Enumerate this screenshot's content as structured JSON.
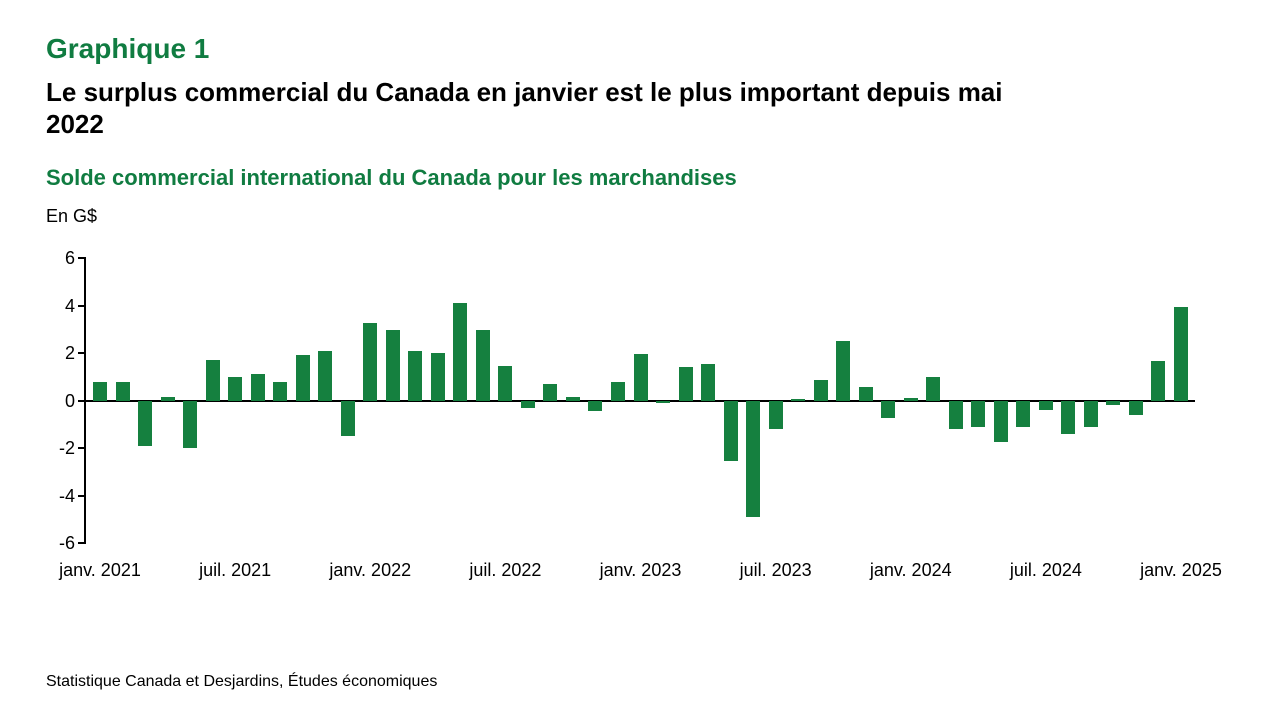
{
  "header": {
    "chart_number": "Graphique 1",
    "title": "Le surplus commercial du Canada en janvier est le plus important depuis mai\n2022",
    "subtitle": "Solde commercial international du Canada pour les marchandises",
    "unit_label": "En G$"
  },
  "source_note": "Statistique Canada et Desjardins, Études économiques",
  "colors": {
    "heading_green": "#107C41",
    "bar_green": "#15803F",
    "axis_black": "#000000"
  },
  "chart_data": {
    "type": "bar",
    "title": "Solde commercial international du Canada pour les marchandises",
    "xlabel": "",
    "ylabel": "En G$",
    "ylim": [
      -6,
      6
    ],
    "yticks": [
      6,
      4,
      2,
      0,
      -2,
      -4,
      -6
    ],
    "grid": false,
    "legend": "none",
    "xtick_labels": [
      "janv. 2021",
      "juil. 2021",
      "janv. 2022",
      "juil. 2022",
      "janv. 2023",
      "juil. 2023",
      "janv. 2024",
      "juil. 2024",
      "janv. 2025"
    ],
    "xtick_positions": [
      0,
      6,
      12,
      18,
      24,
      30,
      36,
      42,
      48
    ],
    "categories": [
      "janv. 2021",
      "févr. 2021",
      "mars 2021",
      "avr. 2021",
      "mai 2021",
      "juin 2021",
      "juil. 2021",
      "août 2021",
      "sept. 2021",
      "oct. 2021",
      "nov. 2021",
      "déc. 2021",
      "janv. 2022",
      "févr. 2022",
      "mars 2022",
      "avr. 2022",
      "mai 2022",
      "juin 2022",
      "juil. 2022",
      "août 2022",
      "sept. 2022",
      "oct. 2022",
      "nov. 2022",
      "déc. 2022",
      "janv. 2023",
      "févr. 2023",
      "mars 2023",
      "avr. 2023",
      "mai 2023",
      "juin 2023",
      "juil. 2023",
      "août 2023",
      "sept. 2023",
      "oct. 2023",
      "nov. 2023",
      "déc. 2023",
      "janv. 2024",
      "févr. 2024",
      "mars 2024",
      "avr. 2024",
      "mai 2024",
      "juin 2024",
      "juil. 2024",
      "août 2024",
      "sept. 2024",
      "oct. 2024",
      "nov. 2024",
      "déc. 2024",
      "janv. 2025"
    ],
    "values": [
      0.8,
      0.8,
      -1.9,
      0.15,
      -2.0,
      1.7,
      1.0,
      1.1,
      0.8,
      1.9,
      2.1,
      -1.5,
      3.25,
      2.95,
      2.1,
      2.0,
      4.1,
      2.95,
      1.45,
      -0.3,
      0.7,
      0.15,
      -0.45,
      0.8,
      1.95,
      -0.1,
      1.4,
      1.55,
      -2.55,
      -4.9,
      -1.2,
      0.05,
      0.85,
      2.5,
      0.55,
      -0.75,
      0.1,
      1.0,
      -1.2,
      -1.1,
      -1.75,
      -1.1,
      -0.4,
      -1.4,
      -1.1,
      -0.2,
      -0.6,
      1.65,
      3.95
    ]
  }
}
